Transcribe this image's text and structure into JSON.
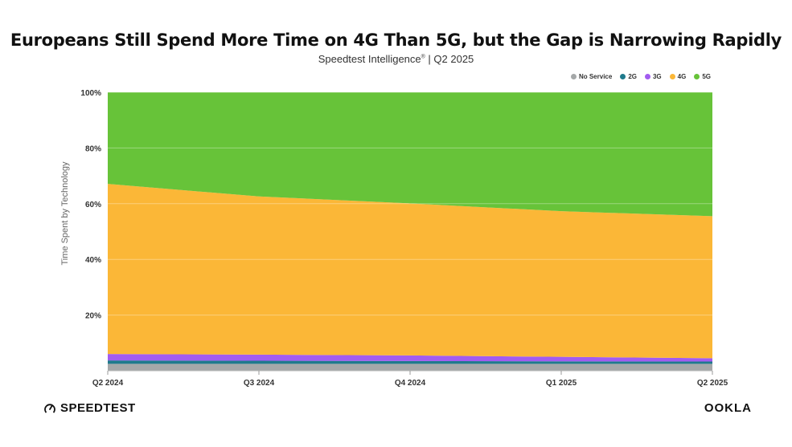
{
  "header": {
    "title": "Europeans Still Spend More Time on 4G Than 5G, but the Gap is Narrowing Rapidly",
    "subtitle_main": "Speedtest Intelligence",
    "subtitle_mark": "®",
    "subtitle_tail": " | Q2 2025"
  },
  "brand": {
    "left": "SPEEDTEST",
    "right": "OOKLA"
  },
  "chart_data": {
    "type": "area",
    "stacked": true,
    "ylabel": "Time Spent by Technology",
    "categories": [
      "Q2 2024",
      "Q3 2024",
      "Q4 2024",
      "Q1 2025",
      "Q2 2025"
    ],
    "ylim": [
      0,
      100
    ],
    "yticks": [
      "20%",
      "40%",
      "60%",
      "80%",
      "100%"
    ],
    "yticks_values": [
      20,
      40,
      60,
      80,
      100
    ],
    "grid": true,
    "legend_position": "top-right",
    "series": [
      {
        "name": "No Service",
        "color": "#a5a8a9",
        "values": [
          2.5,
          2.5,
          2.5,
          2.5,
          2.5
        ]
      },
      {
        "name": "2G",
        "color": "#1f7a8c",
        "values": [
          1.2,
          1.1,
          1.0,
          0.9,
          0.8
        ]
      },
      {
        "name": "3G",
        "color": "#a25cf0",
        "values": [
          2.3,
          2.2,
          2.0,
          1.6,
          1.2
        ]
      },
      {
        "name": "4G",
        "color": "#fbb737",
        "values": [
          61.1,
          56.8,
          54.6,
          52.3,
          51.0
        ]
      },
      {
        "name": "5G",
        "color": "#67c339",
        "values": [
          32.9,
          37.4,
          39.9,
          42.7,
          44.5
        ]
      }
    ]
  }
}
